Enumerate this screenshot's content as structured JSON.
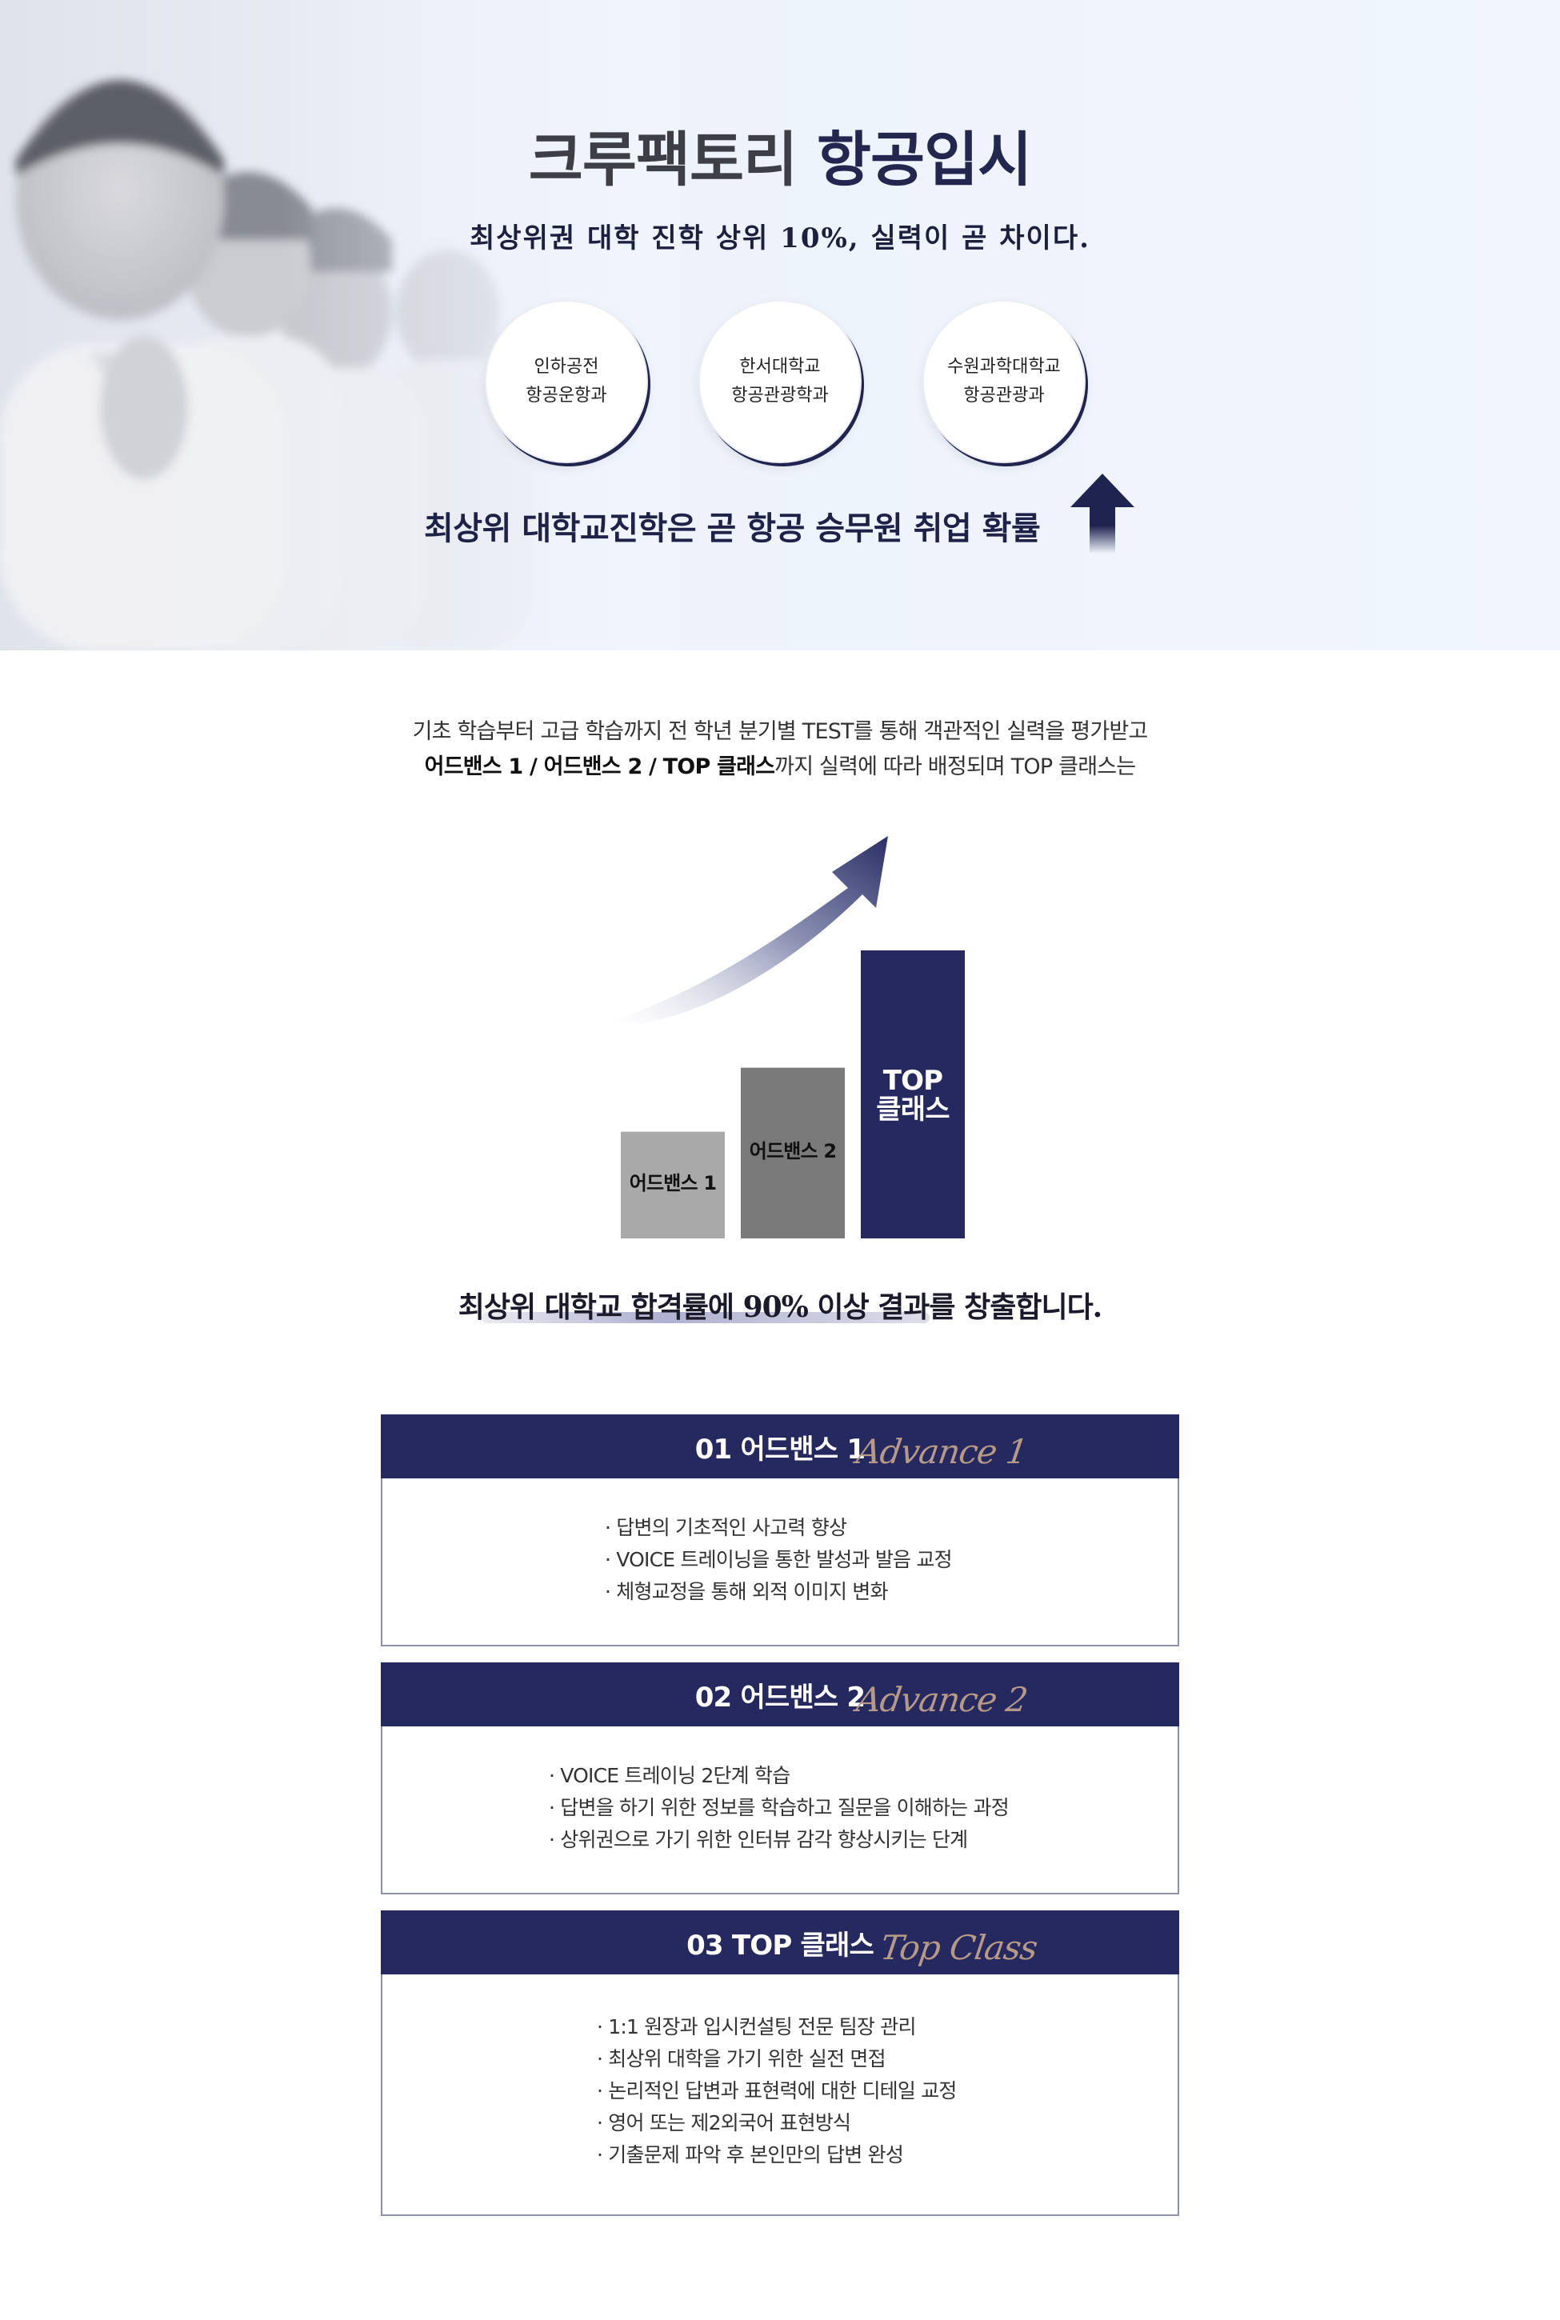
{
  "hero": {
    "title_part1": "크루팩토리",
    "title_part2": "항공입시",
    "subtitle": "최상위권 대학 진학 상위 10%, 실력이 곧 차이다.",
    "universities": [
      {
        "name": "인하공전",
        "dept": "항공운항과"
      },
      {
        "name": "한서대학교",
        "dept": "항공관광학과"
      },
      {
        "name": "수원과학대학교",
        "dept": "항공관광과"
      }
    ],
    "bottom_text": "최상위 대학교진학은 곧 항공 승무원 취업 확률",
    "arrow_icon": "up-arrow-icon"
  },
  "intro": {
    "line1": "기초 학습부터 고급 학습까지 전 학년 분기별 TEST를 통해 객관적인 실력을 평가받고",
    "line2_bold": "어드밴스 1 / 어드밴스 2 / TOP 클래스",
    "line2_rest": "까지 실력에 따라 배정되며 TOP 클래스는"
  },
  "chart_data": {
    "type": "bar",
    "categories": [
      "어드밴스 1",
      "어드밴스 2",
      "TOP 클래스"
    ],
    "category_lines": [
      [
        "어드밴스 1"
      ],
      [
        "어드밴스 2"
      ],
      [
        "TOP",
        "클래스"
      ]
    ],
    "values": [
      1,
      1.6,
      2.7
    ],
    "colors": [
      "#a9a9a9",
      "#7a7a7a",
      "#25295f"
    ],
    "label_colors": [
      "#111111",
      "#111111",
      "#ffffff"
    ],
    "title": "",
    "xlabel": "",
    "ylabel": "",
    "ylim": [
      0,
      2.7
    ],
    "grid": false,
    "trend_arrow_icon": "rising-arrow-icon"
  },
  "caption": "최상위 대학교 합격률에 90% 이상 결과를 창출합니다.",
  "classes": [
    {
      "title": "01 어드밴스 1",
      "script": "Advance 1",
      "items": [
        "답변의 기초적인 사고력 향상",
        "VOICE 트레이닝을 통한 발성과 발음 교정",
        "체형교정을 통해 외적 이미지 변화"
      ]
    },
    {
      "title": "02 어드밴스 2",
      "script": "Advance 2",
      "items": [
        "VOICE 트레이닝 2단계 학습",
        "답변을 하기 위한 정보를 학습하고 질문을 이해하는 과정",
        "상위권으로 가기 위한 인터뷰 감각 향상시키는 단계"
      ]
    },
    {
      "title": "03 TOP 클래스",
      "script": "Top Class",
      "items": [
        "1:1 원장과 입시컨설팅 전문 팀장 관리",
        "최상위 대학을 가기 위한 실전 면접",
        "논리적인 답변과 표현력에 대한 디테일 교정",
        "영어 또는 제2외국어 표현방식",
        "기출문제 파악 후 본인만의 답변 완성"
      ]
    }
  ]
}
